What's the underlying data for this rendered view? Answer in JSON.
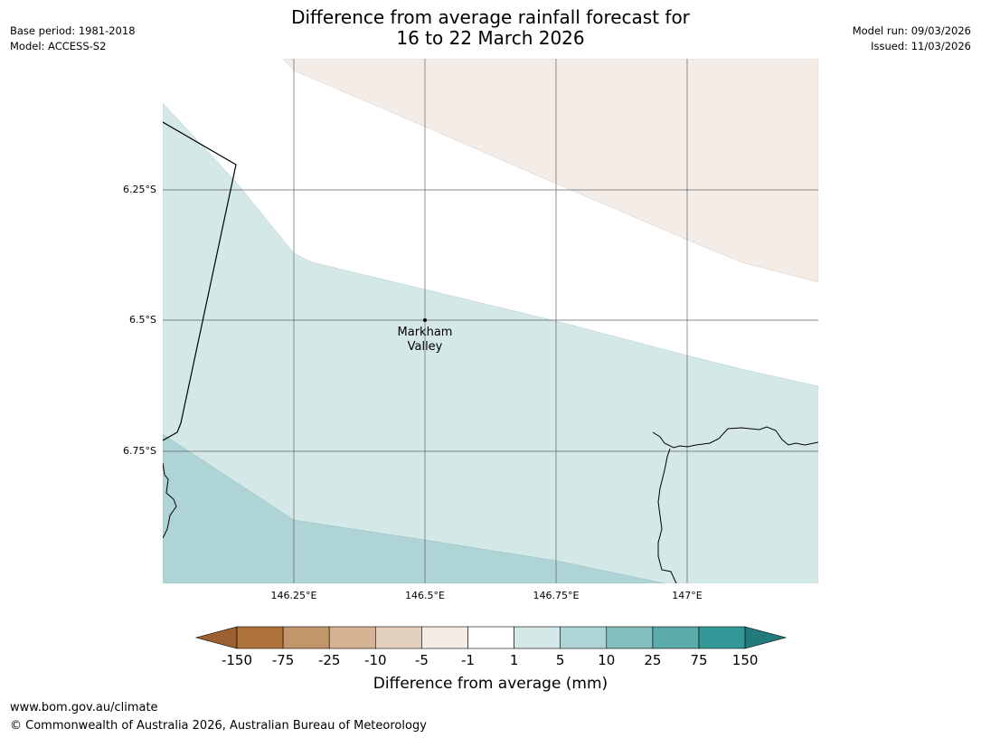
{
  "header": {
    "title_line1": "Difference from average rainfall forecast for",
    "title_line2": "16 to 22 March 2026",
    "base_period": "Base period: 1981-2018",
    "model": "Model: ACCESS-S2",
    "model_run": "Model run: 09/03/2026",
    "issued": "Issued: 11/03/2026"
  },
  "map": {
    "lat_labels": [
      "6.25°S",
      "6.5°S",
      "6.75°S"
    ],
    "lon_labels": [
      "146.25°E",
      "146.5°E",
      "146.75°E",
      "147°E"
    ],
    "place": {
      "name_line1": "Markham",
      "name_line2": "Valley"
    }
  },
  "colorbar": {
    "title": "Difference from average (mm)",
    "boundaries": [
      "-150",
      "-75",
      "-25",
      "-10",
      "-5",
      "-1",
      "1",
      "5",
      "10",
      "25",
      "75",
      "150"
    ],
    "colors": [
      "#9c6031",
      "#ae733b",
      "#c3956a",
      "#d5b393",
      "#e4d0bf",
      "#f4ede7",
      "#ffffff",
      "#d5e8e8",
      "#aed4d5",
      "#84bfbf",
      "#5cabab",
      "#339998",
      "#237a7a"
    ]
  },
  "footer": {
    "url": "www.bom.gov.au/climate",
    "copyright": "© Commonwealth of Australia 2026, Australian Bureau of Meteorology"
  }
}
